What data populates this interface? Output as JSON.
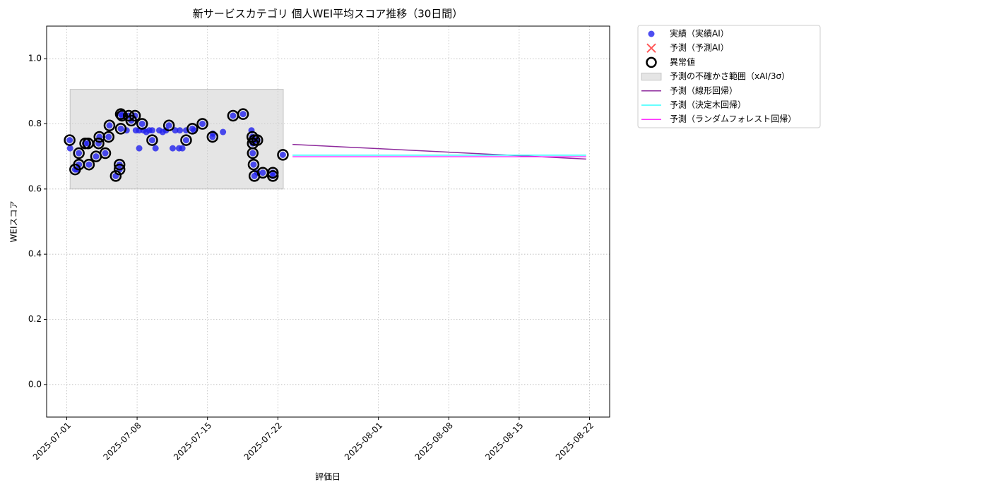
{
  "chart_data": {
    "type": "scatter",
    "title": "新サービスカテゴリ 個人WEI平均スコア推移（30日間）",
    "xlabel": "評価日",
    "ylabel": "WEIスコア",
    "xlim": [
      "2025-06-29",
      "2025-08-24"
    ],
    "xticks": [
      "2025-07-01",
      "2025-07-08",
      "2025-07-15",
      "2025-07-22",
      "2025-08-01",
      "2025-08-08",
      "2025-08-15",
      "2025-08-22"
    ],
    "ylim": [
      -0.1,
      1.1
    ],
    "yticks": [
      {
        "value": 0,
        "label": "0.0"
      },
      0.2,
      0.4,
      0.6,
      0.8,
      {
        "value": 1,
        "label": "1.0"
      }
    ],
    "grid": true,
    "legend": "outside upper right",
    "series": [
      {
        "name": "実績（実績AI）",
        "style": "scatter",
        "color": "#2020ee",
        "x": [
          "2025-07-01 07:00",
          "2025-07-01 08:00",
          "2025-07-01 20:00",
          "2025-07-02 00:00",
          "2025-07-02 05:00",
          "2025-07-02 05:00",
          "2025-07-02 20:00",
          "2025-07-03 03:00",
          "2025-07-03 05:00",
          "2025-07-03 22:00",
          "2025-07-04 04:00",
          "2025-07-04 06:00",
          "2025-07-04 20:00",
          "2025-07-05 04:00",
          "2025-07-05 06:00",
          "2025-07-05 21:00",
          "2025-07-06 06:00",
          "2025-07-06 06:00",
          "2025-07-06 09:00",
          "2025-07-06 09:00",
          "2025-07-06 12:00",
          "2025-07-06 23:00",
          "2025-07-07 04:00",
          "2025-07-07 10:00",
          "2025-07-07 19:00",
          "2025-07-07 21:00",
          "2025-07-08 05:00",
          "2025-07-08 05:00",
          "2025-07-08 12:00",
          "2025-07-08 15:00",
          "2025-07-08 22:00",
          "2025-07-09 05:00",
          "2025-07-09 12:00",
          "2025-07-09 12:00",
          "2025-07-09 20:00",
          "2025-07-10 05:00",
          "2025-07-10 13:00",
          "2025-07-10 21:00",
          "2025-07-11 04:00",
          "2025-07-11 13:00",
          "2025-07-11 19:00",
          "2025-07-12 04:00",
          "2025-07-12 06:00",
          "2025-07-12 12:00",
          "2025-07-12 21:00",
          "2025-07-12 21:00",
          "2025-07-13 12:00",
          "2025-07-13 16:00",
          "2025-07-14 12:00",
          "2025-07-15 12:00",
          "2025-07-15 13:00",
          "2025-07-16 13:00",
          "2025-07-17 13:00",
          "2025-07-18 13:00",
          "2025-07-19 09:00",
          "2025-07-19 11:00",
          "2025-07-19 12:00",
          "2025-07-19 12:00",
          "2025-07-19 14:00",
          "2025-07-19 16:00",
          "2025-07-19 16:00",
          "2025-07-19 23:00",
          "2025-07-19 23:00",
          "2025-07-20 12:00",
          "2025-07-21 12:00",
          "2025-07-21 12:00",
          "2025-07-22 12:00"
        ],
        "values": [
          0.75,
          0.725,
          0.66,
          0.66,
          0.71,
          0.675,
          0.74,
          0.74,
          0.675,
          0.7,
          0.74,
          0.76,
          0.71,
          0.76,
          0.795,
          0.64,
          0.675,
          0.66,
          0.83,
          0.785,
          0.825,
          0.78,
          0.825,
          0.81,
          0.825,
          0.78,
          0.725,
          0.78,
          0.8,
          0.78,
          0.775,
          0.78,
          0.75,
          0.78,
          0.725,
          0.78,
          0.775,
          0.78,
          0.795,
          0.725,
          0.78,
          0.725,
          0.78,
          0.725,
          0.75,
          0.78,
          0.785,
          0.78,
          0.8,
          0.76,
          0.77,
          0.775,
          0.825,
          0.83,
          0.78,
          0.76,
          0.74,
          0.71,
          0.675,
          0.64,
          0.75,
          0.75,
          0.65,
          0.65,
          0.64,
          0.65,
          0.705
        ]
      },
      {
        "name": "予測（予測AI）",
        "style": "cross",
        "color": "#ff3030",
        "x": [],
        "values": []
      },
      {
        "name": "異常値",
        "style": "ring",
        "color": "#000000",
        "x": [
          "2025-07-01 07:00",
          "2025-07-01 20:00",
          "2025-07-02 05:00",
          "2025-07-02 05:00",
          "2025-07-02 20:00",
          "2025-07-03 03:00",
          "2025-07-03 05:00",
          "2025-07-03 22:00",
          "2025-07-04 04:00",
          "2025-07-04 06:00",
          "2025-07-04 20:00",
          "2025-07-05 04:00",
          "2025-07-05 06:00",
          "2025-07-05 21:00",
          "2025-07-06 06:00",
          "2025-07-06 06:00",
          "2025-07-06 09:00",
          "2025-07-06 09:00",
          "2025-07-06 12:00",
          "2025-07-07 04:00",
          "2025-07-07 10:00",
          "2025-07-07 19:00",
          "2025-07-08 12:00",
          "2025-07-09 12:00",
          "2025-07-11 04:00",
          "2025-07-12 21:00",
          "2025-07-13 12:00",
          "2025-07-14 12:00",
          "2025-07-15 12:00",
          "2025-07-17 13:00",
          "2025-07-18 13:00",
          "2025-07-19 11:00",
          "2025-07-19 12:00",
          "2025-07-19 12:00",
          "2025-07-19 14:00",
          "2025-07-19 16:00",
          "2025-07-19 16:00",
          "2025-07-19 23:00",
          "2025-07-20 12:00",
          "2025-07-21 12:00",
          "2025-07-21 12:00",
          "2025-07-22 12:00"
        ],
        "values": [
          0.75,
          0.66,
          0.71,
          0.675,
          0.74,
          0.74,
          0.675,
          0.7,
          0.74,
          0.76,
          0.71,
          0.76,
          0.795,
          0.64,
          0.675,
          0.66,
          0.83,
          0.785,
          0.825,
          0.825,
          0.81,
          0.825,
          0.8,
          0.75,
          0.795,
          0.75,
          0.785,
          0.8,
          0.76,
          0.825,
          0.83,
          0.76,
          0.74,
          0.71,
          0.675,
          0.64,
          0.75,
          0.75,
          0.65,
          0.64,
          0.65,
          0.705
        ]
      },
      {
        "name": "予測の不確かさ範囲（xAI/3σ）",
        "style": "band",
        "color": "#cccccc",
        "x": [
          "2025-07-01 08:00",
          "2025-07-22 13:00"
        ],
        "lower": 0.6,
        "upper": 0.906
      },
      {
        "name": "予測（線形回帰）",
        "style": "line",
        "color": "#8e2a9c",
        "x": [
          "2025-07-23 11:00",
          "2025-08-21 16:00"
        ],
        "values": [
          0.737,
          0.692
        ]
      },
      {
        "name": "予測（決定木回帰）",
        "style": "line",
        "color": "#33ffff",
        "x": [
          "2025-07-23 11:00",
          "2025-08-21 16:00"
        ],
        "values": [
          0.704,
          0.704
        ]
      },
      {
        "name": "予測（ランダムフォレスト回帰）",
        "style": "line",
        "color": "#ff30ff",
        "x": [
          "2025-07-23 11:00",
          "2025-08-21 16:00"
        ],
        "values": [
          0.699,
          0.699
        ]
      }
    ]
  }
}
